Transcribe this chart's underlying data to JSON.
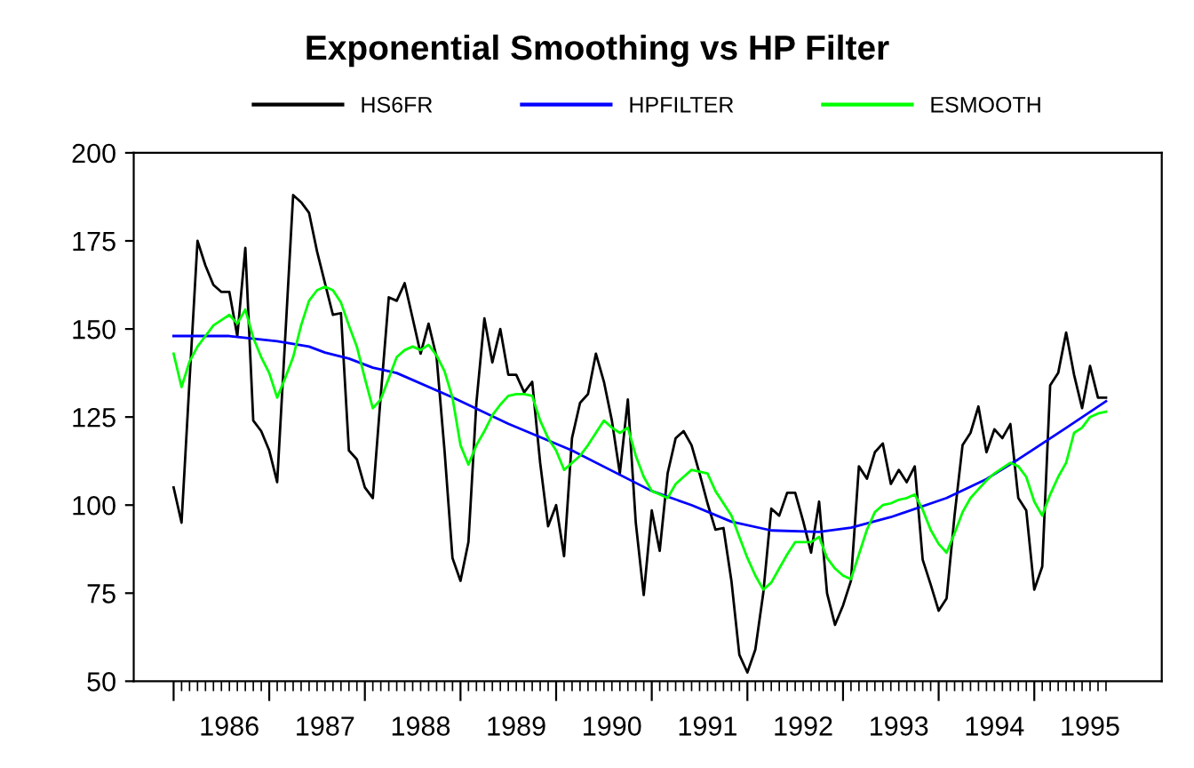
{
  "chart_data": {
    "type": "line",
    "title": "Exponential Smoothing vs HP Filter",
    "x": [
      1985.417,
      1985.5,
      1985.583,
      1985.667,
      1985.75,
      1985.833,
      1985.917,
      1986,
      1986.083,
      1986.167,
      1986.25,
      1986.333,
      1986.417,
      1986.5,
      1986.583,
      1986.667,
      1986.75,
      1986.833,
      1986.917,
      1987,
      1987.083,
      1987.167,
      1987.25,
      1987.333,
      1987.417,
      1987.5,
      1987.583,
      1987.667,
      1987.75,
      1987.833,
      1987.917,
      1988,
      1988.083,
      1988.167,
      1988.25,
      1988.333,
      1988.417,
      1988.5,
      1988.583,
      1988.667,
      1988.75,
      1988.833,
      1988.917,
      1989,
      1989.083,
      1989.167,
      1989.25,
      1989.333,
      1989.417,
      1989.5,
      1989.583,
      1989.667,
      1989.75,
      1989.833,
      1989.917,
      1990,
      1990.083,
      1990.167,
      1990.25,
      1990.333,
      1990.417,
      1990.5,
      1990.583,
      1990.667,
      1990.75,
      1990.833,
      1990.917,
      1991,
      1991.083,
      1991.167,
      1991.25,
      1991.333,
      1991.417,
      1991.5,
      1991.583,
      1991.667,
      1991.75,
      1991.833,
      1991.917,
      1992,
      1992.083,
      1992.167,
      1992.25,
      1992.333,
      1992.417,
      1992.5,
      1992.583,
      1992.667,
      1992.75,
      1992.833,
      1992.917,
      1993,
      1993.083,
      1993.167,
      1993.25,
      1993.333,
      1993.417,
      1993.5,
      1993.583,
      1993.667,
      1993.75,
      1993.833,
      1993.917,
      1994,
      1994.083,
      1994.167,
      1994.25,
      1994.333,
      1994.417,
      1994.5,
      1994.583,
      1994.667,
      1994.75,
      1994.833,
      1994.917,
      1995,
      1995.083,
      1995.167
    ],
    "series": [
      {
        "name": "HS6FR",
        "color": "#000000",
        "values": [
          105,
          95,
          135,
          175,
          168,
          162.5,
          160.5,
          160.5,
          148,
          173,
          124,
          121,
          115.5,
          106.5,
          147,
          188,
          186,
          183,
          172,
          163,
          154,
          154.5,
          115.5,
          113,
          105,
          102,
          131,
          159,
          158,
          163,
          153,
          143,
          151.5,
          142,
          115.5,
          85,
          78.5,
          89.5,
          129,
          153,
          140.5,
          150,
          137,
          137,
          132,
          135,
          112,
          94,
          100,
          85.5,
          119,
          129,
          131.5,
          143,
          135,
          124,
          109,
          130,
          95,
          74.5,
          98.5,
          87,
          109,
          119,
          121,
          117,
          109,
          100.5,
          93,
          93.5,
          78.5,
          57.5,
          52.5,
          59,
          75,
          99,
          97,
          103.5,
          103.5,
          95.5,
          86.5,
          101,
          75,
          66,
          71.5,
          78.5,
          111,
          107.5,
          115,
          117.5,
          106,
          110,
          106.5,
          111,
          84.5,
          77.5,
          70,
          73.5,
          97,
          117,
          120.5,
          128,
          115,
          121.5,
          119,
          123,
          102,
          98.5,
          76,
          82.5,
          134,
          137.5,
          149,
          137,
          127.5,
          139.5,
          130.5,
          130.5
        ]
      },
      {
        "name": "HPFILTER",
        "color": "#0000ff",
        "x": [
          1985.417,
          1986,
          1986.5,
          1986.833,
          1987,
          1987.25,
          1987.5,
          1987.75,
          1988.333,
          1988.917,
          1989.583,
          1990.417,
          1990.833,
          1991.25,
          1991.667,
          1992.167,
          1992.5,
          1992.917,
          1993.5,
          1993.917,
          1994.25,
          1994.75,
          1995.167
        ],
        "values": [
          148,
          148,
          146.5,
          145,
          143.3,
          141.6,
          139,
          137.5,
          130.6,
          123.1,
          115.5,
          104,
          100,
          95.3,
          92.8,
          92.4,
          93.6,
          96.6,
          102,
          107.4,
          113,
          121.9,
          129.5
        ]
      },
      {
        "name": "ESMOOTH",
        "color": "#00ff00",
        "values": [
          143,
          133.5,
          140.7,
          145,
          148,
          151,
          152.5,
          154,
          151.5,
          155.5,
          147.5,
          142,
          137.5,
          130.5,
          136,
          142,
          151,
          158,
          161,
          162,
          161,
          157.5,
          151,
          145,
          136,
          127.5,
          130,
          136,
          142,
          144,
          145,
          144,
          145.5,
          142.5,
          138,
          130.5,
          117,
          111.5,
          117,
          121,
          125.5,
          128.5,
          131,
          131.5,
          131.5,
          131,
          124,
          119,
          115.5,
          110,
          112,
          114,
          117,
          120.5,
          124,
          122,
          120.5,
          122,
          114,
          108,
          104,
          103,
          102,
          106,
          108,
          110,
          109.5,
          109,
          104,
          100.5,
          97,
          91,
          85,
          80,
          76,
          78,
          82,
          86,
          89.5,
          89.5,
          89.5,
          91,
          85,
          82,
          80,
          79,
          86,
          93,
          98,
          100,
          100.5,
          101.5,
          102,
          103,
          98.7,
          93,
          89,
          86.5,
          92,
          98,
          102,
          104.5,
          107,
          109,
          110.5,
          112,
          111,
          108,
          101,
          97,
          103,
          108,
          112,
          120.5,
          122,
          125,
          126,
          126.5
        ]
      }
    ],
    "xlim": [
      1985.0,
      1995.75
    ],
    "xticks": [
      {
        "value": 1985.417,
        "label": null
      },
      {
        "value": 1986.417,
        "label": null
      },
      {
        "value": 1987.417,
        "label": null
      },
      {
        "value": 1988.417,
        "label": null
      },
      {
        "value": 1989.417,
        "label": null
      },
      {
        "value": 1990.417,
        "label": null
      },
      {
        "value": 1991.417,
        "label": null
      },
      {
        "value": 1992.417,
        "label": null
      },
      {
        "value": 1993.417,
        "label": null
      },
      {
        "value": 1994.417,
        "label": null
      },
      {
        "value": 1986,
        "label": "1986"
      },
      {
        "value": 1987,
        "label": "1987"
      },
      {
        "value": 1988,
        "label": "1988"
      },
      {
        "value": 1989,
        "label": "1989"
      },
      {
        "value": 1990,
        "label": "1990"
      },
      {
        "value": 1991,
        "label": "1991"
      },
      {
        "value": 1992,
        "label": "1992"
      },
      {
        "value": 1993,
        "label": "1993"
      },
      {
        "value": 1994,
        "label": "1994"
      },
      {
        "value": 1995,
        "label": "1995"
      }
    ],
    "ylim": [
      50,
      200
    ],
    "yticks": [
      50,
      75,
      100,
      125,
      150,
      175,
      200
    ],
    "legend": "top",
    "grid": false,
    "marker": "none",
    "line_style": "solid"
  }
}
